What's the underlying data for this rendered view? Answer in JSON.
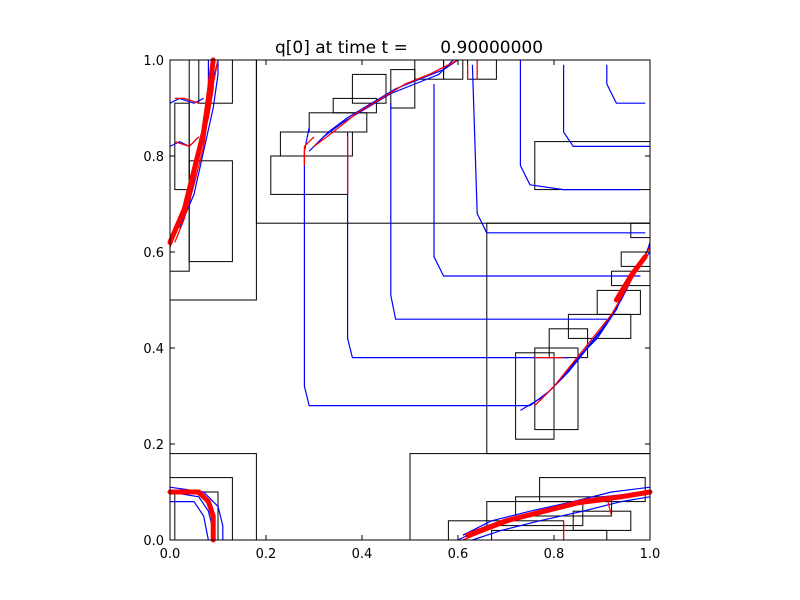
{
  "chart_data": {
    "type": "contour",
    "title": "q[0] at time t =      0.90000000",
    "xlabel": "",
    "ylabel": "",
    "xlim": [
      0,
      1
    ],
    "ylim": [
      0,
      1
    ],
    "xticks": [
      0.0,
      0.2,
      0.4,
      0.6,
      0.8,
      1.0
    ],
    "xtick_labels": [
      "0.0",
      "0.2",
      "0.4",
      "0.6",
      "0.8",
      "1.0"
    ],
    "yticks": [
      0.0,
      0.2,
      0.4,
      0.6,
      0.8,
      1.0
    ],
    "ytick_labels": [
      "0.0",
      "0.2",
      "0.4",
      "0.6",
      "0.8",
      "1.0"
    ],
    "grid": false,
    "colors": {
      "contour": "#0000ff",
      "front": "#ff0000",
      "patch": "#000000"
    },
    "amr_patches": [
      [
        0.0,
        0.5,
        0.18,
        1.0
      ],
      [
        0.18,
        0.66,
        1.0,
        1.0
      ],
      [
        0.66,
        0.18,
        1.0,
        0.66
      ],
      [
        0.0,
        0.0,
        0.18,
        0.18
      ],
      [
        0.5,
        0.0,
        1.0,
        0.18
      ],
      [
        0.0,
        0.56,
        0.04,
        1.0
      ],
      [
        0.04,
        0.58,
        0.13,
        0.79
      ],
      [
        0.01,
        0.73,
        0.04,
        0.91
      ],
      [
        0.06,
        0.91,
        0.13,
        1.0
      ],
      [
        0.21,
        0.72,
        0.37,
        0.8
      ],
      [
        0.23,
        0.8,
        0.38,
        0.85
      ],
      [
        0.29,
        0.85,
        0.41,
        0.89
      ],
      [
        0.34,
        0.89,
        0.43,
        0.92
      ],
      [
        0.38,
        0.91,
        0.45,
        0.97
      ],
      [
        0.46,
        0.9,
        0.51,
        0.98
      ],
      [
        0.51,
        0.96,
        0.57,
        1.0
      ],
      [
        0.57,
        0.96,
        0.61,
        1.0
      ],
      [
        0.62,
        0.96,
        0.68,
        1.0
      ],
      [
        0.76,
        0.73,
        1.0,
        0.83
      ],
      [
        0.72,
        0.21,
        0.8,
        0.39
      ],
      [
        0.76,
        0.23,
        0.85,
        0.4
      ],
      [
        0.79,
        0.38,
        0.87,
        0.44
      ],
      [
        0.83,
        0.42,
        0.96,
        0.47
      ],
      [
        0.89,
        0.47,
        0.98,
        0.52
      ],
      [
        0.92,
        0.53,
        1.0,
        0.56
      ],
      [
        0.94,
        0.57,
        1.0,
        0.6
      ],
      [
        0.96,
        0.63,
        1.0,
        0.66
      ],
      [
        0.0,
        0.0,
        0.13,
        0.13
      ],
      [
        0.01,
        0.0,
        0.1,
        0.1
      ],
      [
        0.58,
        0.0,
        0.82,
        0.04
      ],
      [
        0.66,
        0.03,
        0.86,
        0.08
      ],
      [
        0.72,
        0.05,
        0.92,
        0.09
      ],
      [
        0.77,
        0.08,
        0.99,
        0.13
      ],
      [
        0.84,
        0.02,
        0.96,
        0.06
      ],
      [
        0.67,
        0.0,
        0.91,
        0.02
      ]
    ],
    "contours_blue": [
      [
        [
          0.29,
          0.86
        ],
        [
          0.28,
          0.81
        ],
        [
          0.28,
          0.32
        ],
        [
          0.29,
          0.28
        ],
        [
          0.35,
          0.28
        ],
        [
          0.75,
          0.28
        ]
      ],
      [
        [
          0.37,
          0.85
        ],
        [
          0.37,
          0.42
        ],
        [
          0.38,
          0.38
        ],
        [
          0.42,
          0.38
        ],
        [
          0.83,
          0.38
        ]
      ],
      [
        [
          0.46,
          0.91
        ],
        [
          0.46,
          0.51
        ],
        [
          0.47,
          0.46
        ],
        [
          0.51,
          0.46
        ],
        [
          0.91,
          0.46
        ]
      ],
      [
        [
          0.55,
          0.95
        ],
        [
          0.55,
          0.59
        ],
        [
          0.57,
          0.55
        ],
        [
          0.61,
          0.55
        ],
        [
          0.98,
          0.55
        ]
      ],
      [
        [
          0.63,
          0.99
        ],
        [
          0.64,
          0.68
        ],
        [
          0.66,
          0.64
        ],
        [
          0.73,
          0.64
        ],
        [
          0.99,
          0.64
        ]
      ],
      [
        [
          0.73,
          1.0
        ],
        [
          0.73,
          0.78
        ],
        [
          0.75,
          0.74
        ],
        [
          0.82,
          0.73
        ],
        [
          0.98,
          0.73
        ]
      ],
      [
        [
          0.82,
          0.99
        ],
        [
          0.82,
          0.85
        ],
        [
          0.84,
          0.82
        ],
        [
          1.0,
          0.82
        ]
      ],
      [
        [
          0.91,
          0.99
        ],
        [
          0.91,
          0.95
        ],
        [
          0.93,
          0.91
        ],
        [
          0.99,
          0.91
        ]
      ],
      [
        [
          0.0,
          0.63
        ],
        [
          0.03,
          0.68
        ],
        [
          0.05,
          0.77
        ],
        [
          0.07,
          0.85
        ],
        [
          0.08,
          0.93
        ],
        [
          0.08,
          1.0
        ]
      ],
      [
        [
          0.01,
          0.64
        ],
        [
          0.04,
          0.7
        ],
        [
          0.06,
          0.8
        ],
        [
          0.08,
          0.9
        ],
        [
          0.09,
          0.96
        ],
        [
          0.1,
          1.0
        ]
      ],
      [
        [
          0.02,
          0.65
        ],
        [
          0.05,
          0.72
        ],
        [
          0.07,
          0.81
        ],
        [
          0.09,
          0.9
        ],
        [
          0.1,
          0.97
        ],
        [
          0.1,
          1.0
        ]
      ],
      [
        [
          0.0,
          0.91
        ],
        [
          0.02,
          0.92
        ],
        [
          0.05,
          0.91
        ],
        [
          0.07,
          0.92
        ]
      ],
      [
        [
          0.0,
          0.82
        ],
        [
          0.02,
          0.83
        ],
        [
          0.04,
          0.82
        ],
        [
          0.06,
          0.84
        ]
      ],
      [
        [
          0.0,
          0.1
        ],
        [
          0.06,
          0.09
        ],
        [
          0.08,
          0.06
        ],
        [
          0.09,
          0.02
        ],
        [
          0.09,
          0.0
        ]
      ],
      [
        [
          0.0,
          0.11
        ],
        [
          0.07,
          0.1
        ],
        [
          0.1,
          0.07
        ],
        [
          0.11,
          0.03
        ],
        [
          0.11,
          0.0
        ]
      ],
      [
        [
          0.0,
          0.08
        ],
        [
          0.05,
          0.08
        ],
        [
          0.07,
          0.05
        ],
        [
          0.08,
          0.0
        ]
      ],
      [
        [
          0.6,
          0.0
        ],
        [
          0.66,
          0.03
        ],
        [
          0.74,
          0.05
        ],
        [
          0.82,
          0.07
        ],
        [
          0.9,
          0.09
        ],
        [
          1.0,
          0.1
        ]
      ],
      [
        [
          0.61,
          0.01
        ],
        [
          0.67,
          0.04
        ],
        [
          0.75,
          0.06
        ],
        [
          0.84,
          0.08
        ],
        [
          0.92,
          0.1
        ],
        [
          1.0,
          0.11
        ]
      ],
      [
        [
          0.63,
          0.0
        ],
        [
          0.69,
          0.02
        ],
        [
          0.77,
          0.04
        ],
        [
          0.86,
          0.06
        ],
        [
          0.94,
          0.08
        ],
        [
          1.0,
          0.09
        ]
      ],
      [
        [
          0.75,
          0.28
        ],
        [
          0.79,
          0.31
        ],
        [
          0.83,
          0.35
        ],
        [
          0.87,
          0.4
        ],
        [
          0.91,
          0.45
        ],
        [
          0.95,
          0.52
        ],
        [
          0.98,
          0.58
        ],
        [
          1.0,
          0.61
        ]
      ],
      [
        [
          0.73,
          0.27
        ],
        [
          0.78,
          0.3
        ],
        [
          0.82,
          0.34
        ],
        [
          0.86,
          0.39
        ],
        [
          0.9,
          0.44
        ],
        [
          0.94,
          0.5
        ],
        [
          0.97,
          0.56
        ],
        [
          1.0,
          0.6
        ]
      ],
      [
        [
          0.77,
          0.29
        ],
        [
          0.81,
          0.33
        ],
        [
          0.85,
          0.38
        ],
        [
          0.89,
          0.42
        ],
        [
          0.93,
          0.48
        ],
        [
          0.96,
          0.55
        ],
        [
          0.99,
          0.59
        ],
        [
          1.0,
          0.62
        ]
      ],
      [
        [
          0.3,
          0.82
        ],
        [
          0.33,
          0.85
        ],
        [
          0.37,
          0.88
        ],
        [
          0.42,
          0.91
        ],
        [
          0.47,
          0.94
        ],
        [
          0.52,
          0.96
        ],
        [
          0.57,
          0.98
        ],
        [
          0.6,
          1.0
        ]
      ],
      [
        [
          0.29,
          0.81
        ],
        [
          0.32,
          0.84
        ],
        [
          0.36,
          0.87
        ],
        [
          0.41,
          0.9
        ],
        [
          0.46,
          0.93
        ],
        [
          0.51,
          0.95
        ],
        [
          0.56,
          0.97
        ],
        [
          0.59,
          1.0
        ]
      ]
    ],
    "fronts_red": [
      [
        [
          0.0,
          0.61
        ],
        [
          0.02,
          0.66
        ],
        [
          0.04,
          0.72
        ],
        [
          0.06,
          0.8
        ],
        [
          0.08,
          0.88
        ],
        [
          0.09,
          0.94
        ],
        [
          0.09,
          1.0
        ]
      ],
      [
        [
          0.01,
          0.62
        ],
        [
          0.03,
          0.67
        ],
        [
          0.05,
          0.74
        ],
        [
          0.07,
          0.82
        ],
        [
          0.08,
          0.89
        ],
        [
          0.09,
          0.95
        ],
        [
          0.1,
          1.0
        ]
      ],
      [
        [
          0.0,
          0.1
        ],
        [
          0.05,
          0.1
        ],
        [
          0.08,
          0.08
        ],
        [
          0.09,
          0.04
        ],
        [
          0.09,
          0.0
        ]
      ],
      [
        [
          0.61,
          0.0
        ],
        [
          0.66,
          0.02
        ],
        [
          0.74,
          0.05
        ],
        [
          0.82,
          0.07
        ],
        [
          0.9,
          0.08
        ],
        [
          1.0,
          0.1
        ]
      ],
      [
        [
          0.62,
          0.01
        ],
        [
          0.67,
          0.03
        ],
        [
          0.75,
          0.05
        ],
        [
          0.83,
          0.07
        ],
        [
          0.91,
          0.09
        ],
        [
          1.0,
          0.1
        ]
      ],
      [
        [
          0.76,
          0.28
        ],
        [
          0.8,
          0.32
        ],
        [
          0.84,
          0.37
        ],
        [
          0.88,
          0.42
        ],
        [
          0.92,
          0.47
        ],
        [
          0.96,
          0.54
        ],
        [
          1.0,
          0.61
        ]
      ],
      [
        [
          0.3,
          0.82
        ],
        [
          0.34,
          0.85
        ],
        [
          0.39,
          0.89
        ],
        [
          0.44,
          0.92
        ],
        [
          0.49,
          0.95
        ],
        [
          0.54,
          0.97
        ],
        [
          0.6,
          1.0
        ]
      ],
      [
        [
          0.28,
          0.78
        ],
        [
          0.28,
          0.82
        ],
        [
          0.3,
          0.84
        ]
      ],
      [
        [
          0.37,
          0.72
        ],
        [
          0.37,
          0.84
        ]
      ],
      [
        [
          0.64,
          0.96
        ],
        [
          0.64,
          1.0
        ]
      ],
      [
        [
          0.62,
          0.96
        ],
        [
          0.62,
          0.99
        ]
      ],
      [
        [
          0.01,
          0.83
        ],
        [
          0.04,
          0.82
        ],
        [
          0.06,
          0.84
        ]
      ],
      [
        [
          0.01,
          0.92
        ],
        [
          0.03,
          0.92
        ],
        [
          0.06,
          0.91
        ]
      ],
      [
        [
          0.82,
          0.0
        ],
        [
          0.82,
          0.04
        ]
      ],
      [
        [
          0.92,
          0.05
        ],
        [
          0.91,
          0.09
        ]
      ],
      [
        [
          0.76,
          0.38
        ],
        [
          0.82,
          0.38
        ]
      ]
    ],
    "thick_red": [
      [
        [
          0.0,
          0.62
        ],
        [
          0.03,
          0.69
        ],
        [
          0.05,
          0.77
        ],
        [
          0.07,
          0.85
        ],
        [
          0.08,
          0.92
        ],
        [
          0.09,
          1.0
        ]
      ],
      [
        [
          0.0,
          0.1
        ],
        [
          0.06,
          0.1
        ],
        [
          0.08,
          0.08
        ],
        [
          0.09,
          0.05
        ],
        [
          0.09,
          0.0
        ]
      ],
      [
        [
          0.62,
          0.01
        ],
        [
          0.7,
          0.04
        ],
        [
          0.78,
          0.06
        ],
        [
          0.86,
          0.08
        ],
        [
          0.94,
          0.09
        ],
        [
          1.0,
          0.1
        ]
      ],
      [
        [
          0.93,
          0.5
        ],
        [
          0.96,
          0.55
        ],
        [
          0.99,
          0.59
        ]
      ]
    ]
  }
}
